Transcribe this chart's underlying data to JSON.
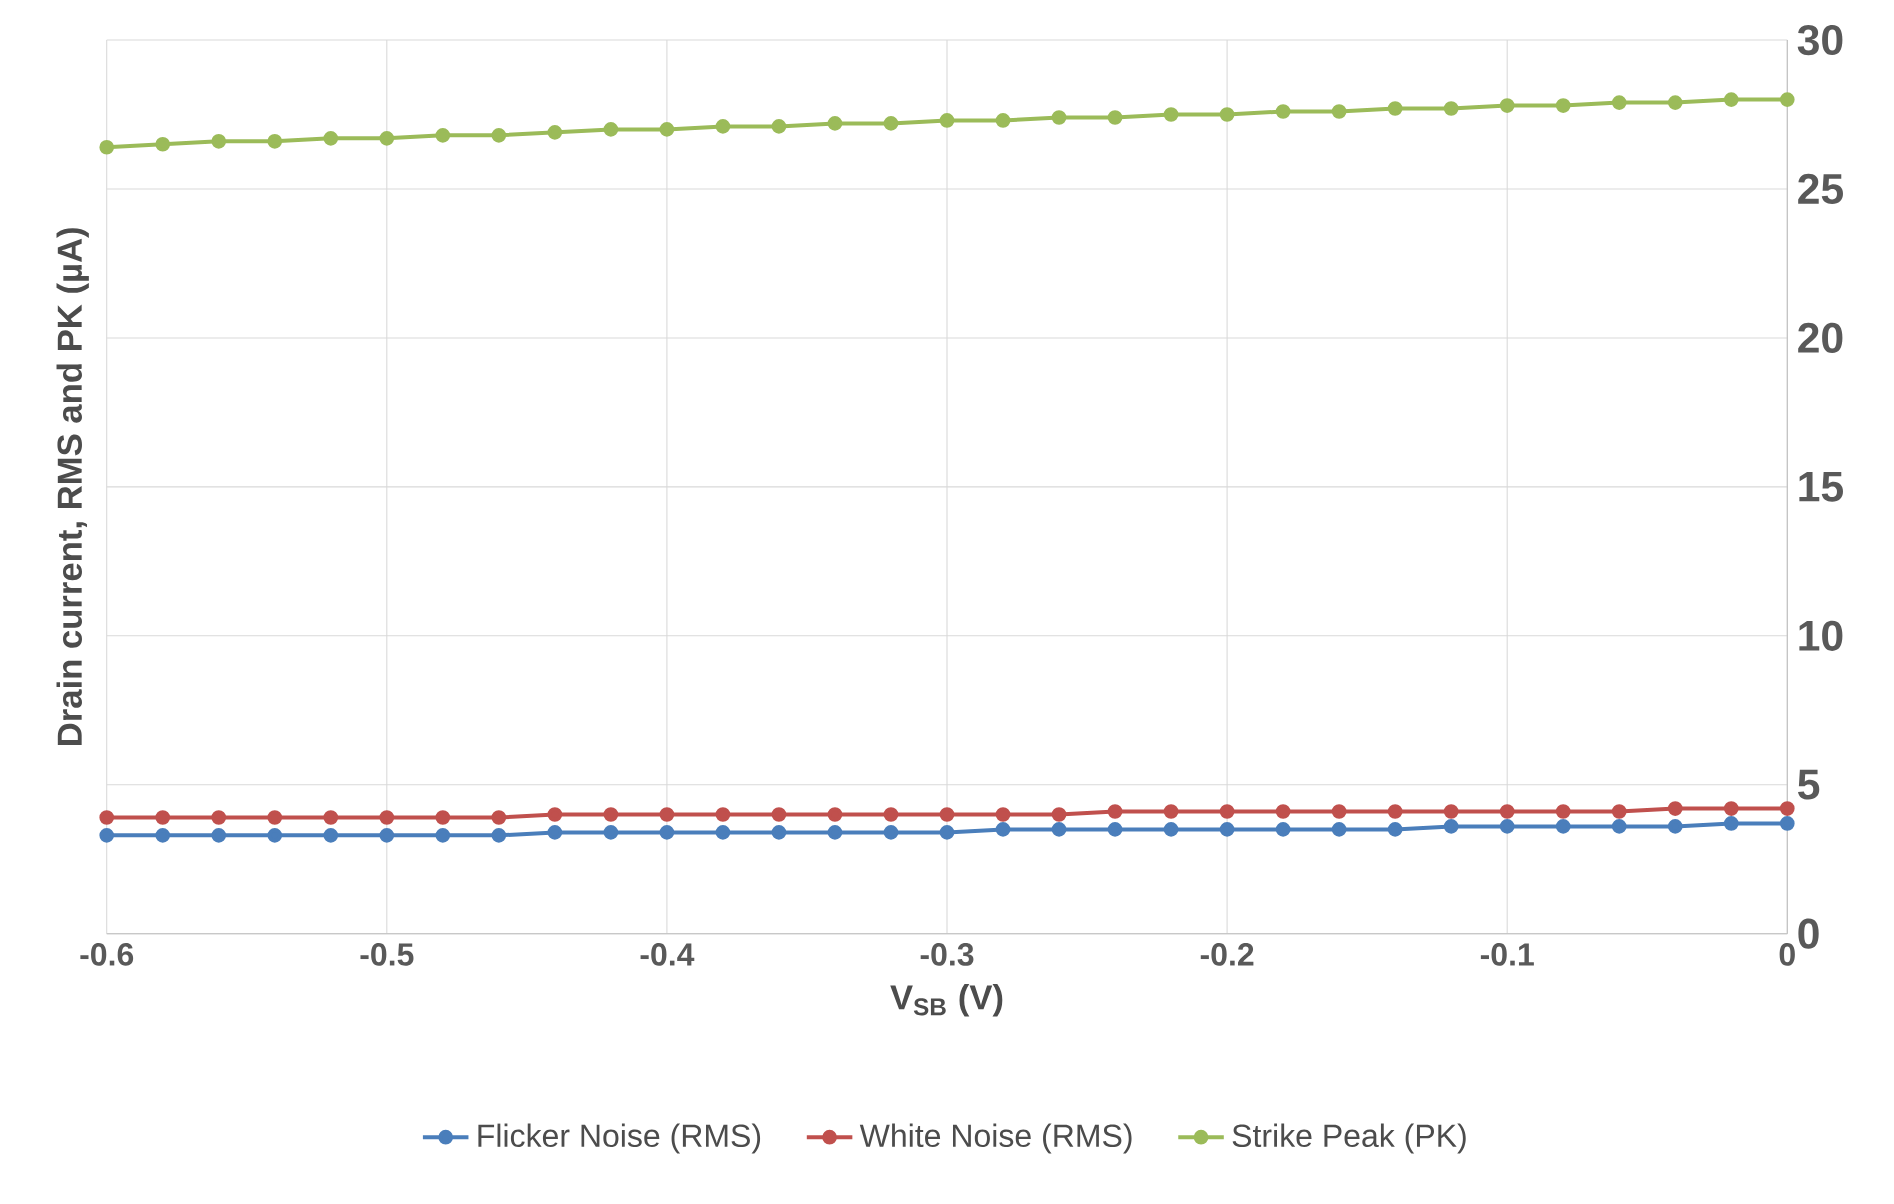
{
  "chart_data": {
    "type": "line",
    "xlabel": "V$_{SB}$ (V)",
    "ylabel": "Drain current, RMS and PK (µA)",
    "x": [
      -0.6,
      -0.58,
      -0.56,
      -0.54,
      -0.52,
      -0.5,
      -0.48,
      -0.46,
      -0.44,
      -0.42,
      -0.4,
      -0.38,
      -0.36,
      -0.34,
      -0.32,
      -0.3,
      -0.28,
      -0.26,
      -0.24,
      -0.22,
      -0.2,
      -0.18,
      -0.16,
      -0.14,
      -0.12,
      -0.1,
      -0.08,
      -0.06,
      -0.04,
      -0.02,
      0
    ],
    "series": [
      {
        "name": "Flicker Noise (RMS)",
        "color": "#4a7ebb",
        "values": [
          3.3,
          3.3,
          3.3,
          3.3,
          3.3,
          3.3,
          3.3,
          3.3,
          3.4,
          3.4,
          3.4,
          3.4,
          3.4,
          3.4,
          3.4,
          3.4,
          3.5,
          3.5,
          3.5,
          3.5,
          3.5,
          3.5,
          3.5,
          3.5,
          3.6,
          3.6,
          3.6,
          3.6,
          3.6,
          3.7,
          3.7
        ]
      },
      {
        "name": "White Noise (RMS)",
        "color": "#c0504d",
        "values": [
          3.9,
          3.9,
          3.9,
          3.9,
          3.9,
          3.9,
          3.9,
          3.9,
          4.0,
          4.0,
          4.0,
          4.0,
          4.0,
          4.0,
          4.0,
          4.0,
          4.0,
          4.0,
          4.1,
          4.1,
          4.1,
          4.1,
          4.1,
          4.1,
          4.1,
          4.1,
          4.1,
          4.1,
          4.2,
          4.2,
          4.2
        ]
      },
      {
        "name": "Strike Peak (PK)",
        "color": "#9bbb59",
        "values": [
          26.4,
          26.5,
          26.6,
          26.6,
          26.7,
          26.7,
          26.8,
          26.8,
          26.9,
          27.0,
          27.0,
          27.1,
          27.1,
          27.2,
          27.2,
          27.3,
          27.3,
          27.4,
          27.4,
          27.5,
          27.5,
          27.6,
          27.6,
          27.7,
          27.7,
          27.8,
          27.8,
          27.9,
          27.9,
          28.0,
          28.0
        ]
      }
    ],
    "xlim": [
      -0.6,
      0
    ],
    "ylim": [
      0,
      30
    ],
    "xticks": [
      -0.6,
      -0.5,
      -0.4,
      -0.3,
      -0.2,
      -0.1,
      0
    ],
    "yticks": [
      0,
      5,
      10,
      15,
      20,
      25,
      30
    ],
    "grid": true,
    "legend": "bottom",
    "marker": "circle"
  }
}
